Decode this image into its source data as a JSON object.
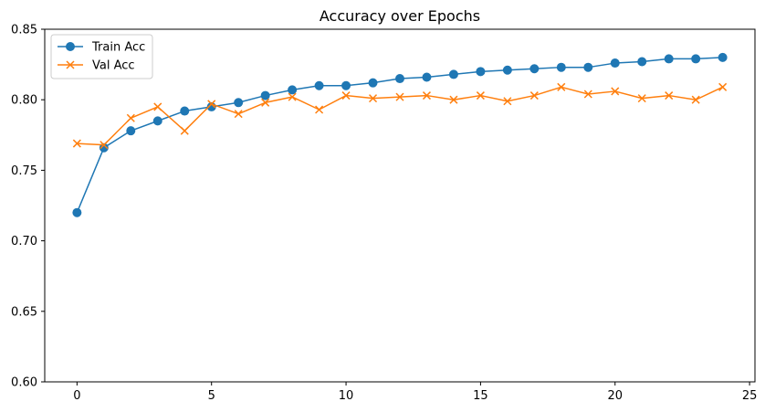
{
  "chart_data": {
    "type": "line",
    "title": "Accuracy over Epochs",
    "xlabel": "",
    "ylabel": "",
    "xlim": [
      -1.2,
      25.2
    ],
    "ylim": [
      0.6,
      0.85
    ],
    "x_ticks": [
      0,
      5,
      10,
      15,
      20,
      25
    ],
    "y_ticks": [
      0.6,
      0.65,
      0.7,
      0.75,
      0.8,
      0.85
    ],
    "x_tick_labels": [
      "0",
      "5",
      "10",
      "15",
      "20",
      "25"
    ],
    "y_tick_labels": [
      "0.60",
      "0.65",
      "0.70",
      "0.75",
      "0.80",
      "0.85"
    ],
    "grid": false,
    "legend_position": "top-left",
    "x": [
      0,
      1,
      2,
      3,
      4,
      5,
      6,
      7,
      8,
      9,
      10,
      11,
      12,
      13,
      14,
      15,
      16,
      17,
      18,
      19,
      20,
      21,
      22,
      23,
      24
    ],
    "series": [
      {
        "name": "Train Acc",
        "color": "#1f77b4",
        "marker": "circle",
        "values": [
          0.72,
          0.766,
          0.778,
          0.785,
          0.792,
          0.795,
          0.798,
          0.803,
          0.807,
          0.81,
          0.81,
          0.812,
          0.815,
          0.816,
          0.818,
          0.82,
          0.821,
          0.822,
          0.823,
          0.823,
          0.826,
          0.827,
          0.829,
          0.829,
          0.83
        ]
      },
      {
        "name": "Val Acc",
        "color": "#ff7f0e",
        "marker": "x",
        "values": [
          0.769,
          0.768,
          0.787,
          0.795,
          0.778,
          0.797,
          0.79,
          0.798,
          0.802,
          0.793,
          0.803,
          0.801,
          0.802,
          0.803,
          0.8,
          0.803,
          0.799,
          0.803,
          0.809,
          0.804,
          0.806,
          0.801,
          0.803,
          0.8,
          0.809
        ]
      }
    ]
  }
}
